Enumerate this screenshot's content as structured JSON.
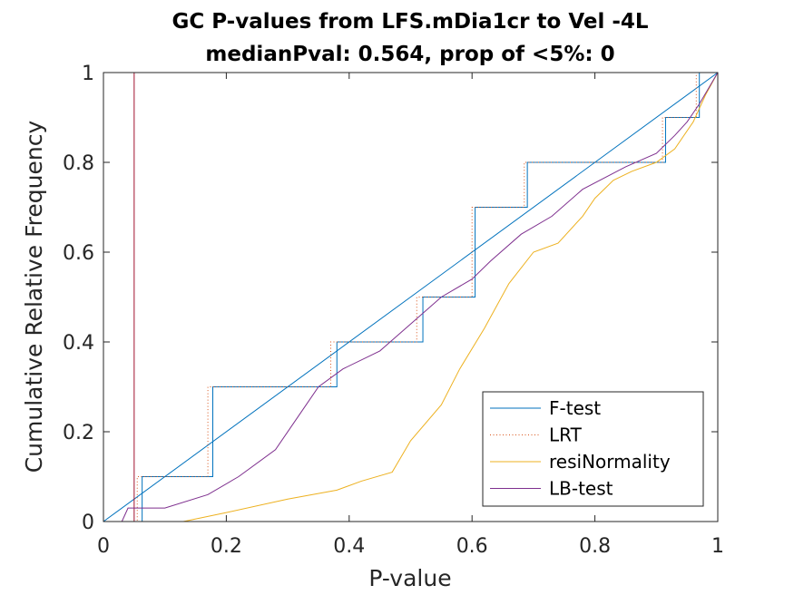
{
  "chart_data": {
    "type": "line",
    "title": "GC P-values from LFS.mDia1cr to Vel -4L",
    "subtitle": "medianPval: 0.564, prop of <5%: 0",
    "xlabel": "P-value",
    "ylabel": "Cumulative Relative Frequency",
    "xlim": [
      0,
      1
    ],
    "ylim": [
      0,
      1
    ],
    "x_ticks": [
      0,
      0.2,
      0.4,
      0.6,
      0.8,
      1
    ],
    "x_tick_labels": [
      "0",
      "0.2",
      "0.4",
      "0.6",
      "0.8",
      "1"
    ],
    "y_ticks": [
      0,
      0.2,
      0.4,
      0.6,
      0.8,
      1
    ],
    "y_tick_labels": [
      "0",
      "0.2",
      "0.4",
      "0.6",
      "0.8",
      "1"
    ],
    "grid": false,
    "legend_position": "bottom-right",
    "reference_lines": [
      {
        "kind": "diagonal",
        "color": "#0072BD",
        "from": [
          0,
          0
        ],
        "to": [
          1,
          1
        ]
      },
      {
        "kind": "vertical",
        "color": "#A2142F",
        "x": 0.05
      }
    ],
    "series": [
      {
        "name": "F-test",
        "color": "#0072BD",
        "style": "solid",
        "x": [
          0,
          0.063,
          0.063,
          0.178,
          0.178,
          0.38,
          0.38,
          0.52,
          0.52,
          0.605,
          0.605,
          0.69,
          0.69,
          0.915,
          0.915,
          0.97,
          0.97,
          1.0
        ],
        "y": [
          0,
          0,
          0.1,
          0.1,
          0.3,
          0.3,
          0.4,
          0.4,
          0.5,
          0.5,
          0.7,
          0.7,
          0.8,
          0.8,
          0.9,
          0.9,
          1.0,
          1.0
        ]
      },
      {
        "name": "LRT",
        "color": "#D95319",
        "style": "dotted",
        "x": [
          0,
          0.055,
          0.055,
          0.17,
          0.17,
          0.37,
          0.37,
          0.51,
          0.51,
          0.6,
          0.6,
          0.685,
          0.685,
          0.91,
          0.91,
          0.965,
          0.965,
          1.0
        ],
        "y": [
          0,
          0,
          0.1,
          0.1,
          0.3,
          0.3,
          0.4,
          0.4,
          0.5,
          0.5,
          0.7,
          0.7,
          0.8,
          0.8,
          0.9,
          0.9,
          1.0,
          1.0
        ]
      },
      {
        "name": "resiNormality",
        "color": "#EDB120",
        "style": "solid",
        "x": [
          0.13,
          0.2,
          0.3,
          0.38,
          0.42,
          0.47,
          0.5,
          0.55,
          0.58,
          0.62,
          0.66,
          0.7,
          0.74,
          0.78,
          0.8,
          0.83,
          0.86,
          0.9,
          0.93,
          0.96,
          0.98,
          1.0
        ],
        "y": [
          0,
          0.02,
          0.05,
          0.07,
          0.09,
          0.11,
          0.18,
          0.26,
          0.34,
          0.43,
          0.53,
          0.6,
          0.62,
          0.68,
          0.72,
          0.76,
          0.78,
          0.8,
          0.83,
          0.89,
          0.95,
          1.0
        ]
      },
      {
        "name": "LB-test",
        "color": "#7E2F8E",
        "style": "solid",
        "x": [
          0.03,
          0.04,
          0.1,
          0.17,
          0.22,
          0.28,
          0.32,
          0.35,
          0.39,
          0.45,
          0.5,
          0.55,
          0.6,
          0.63,
          0.68,
          0.73,
          0.78,
          0.85,
          0.9,
          0.93,
          0.95,
          0.97,
          1.0
        ],
        "y": [
          0,
          0.03,
          0.03,
          0.06,
          0.1,
          0.16,
          0.24,
          0.3,
          0.34,
          0.38,
          0.44,
          0.5,
          0.54,
          0.58,
          0.64,
          0.68,
          0.74,
          0.79,
          0.82,
          0.86,
          0.89,
          0.93,
          1.0
        ]
      }
    ]
  }
}
